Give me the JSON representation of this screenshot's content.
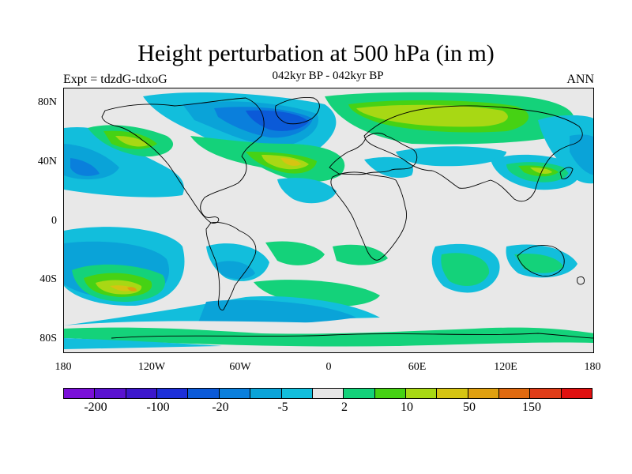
{
  "title": "Height perturbation at 500 hPa (in m)",
  "subtitle_left": "Expt = tdzdG-tdxoG",
  "subtitle_center": "042kyr BP - 042kyr BP",
  "subtitle_right": "ANN",
  "lat_labels": [
    "80N",
    "40N",
    "0",
    "40S",
    "80S"
  ],
  "lon_labels": [
    "180",
    "120W",
    "60W",
    "0",
    "60E",
    "120E",
    "180"
  ],
  "colorbar": {
    "colors": [
      "#7a10d8",
      "#5a12d0",
      "#3c17cc",
      "#1d2fd8",
      "#0b5ad8",
      "#0a7fdc",
      "#0aa3d8",
      "#12bedc",
      "#e6e6e6",
      "#14d27a",
      "#46d214",
      "#a8d814",
      "#d6c412",
      "#e0a010",
      "#e06a10",
      "#e03c18",
      "#e01010"
    ],
    "labels": [
      "-200",
      "-100",
      "-20",
      "-5",
      "2",
      "10",
      "50",
      "150"
    ]
  }
}
